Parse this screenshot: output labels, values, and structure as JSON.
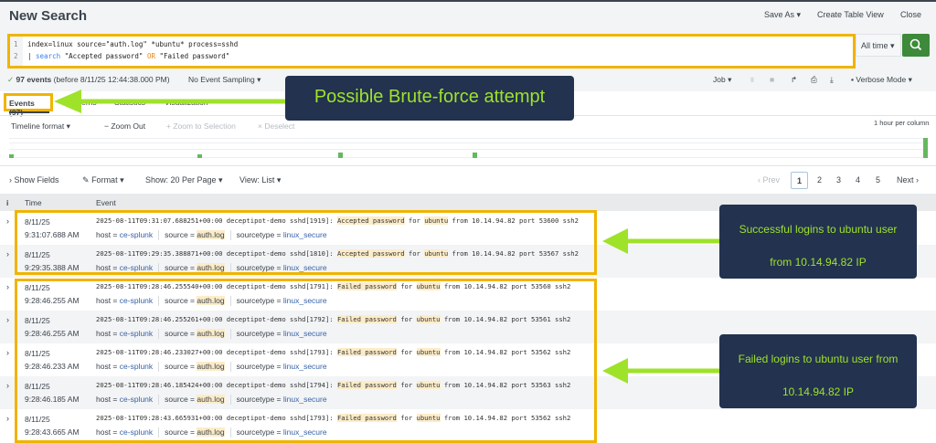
{
  "header": {
    "title": "New Search",
    "save_as": "Save As ▾",
    "create_table_view": "Create Table View",
    "close": "Close"
  },
  "search": {
    "line1": "index=linux source=\"auth.log\" *ubuntu* process=sshd",
    "line2_pipe": "| ",
    "line2_kw": "search",
    "line2_a": " \"Accepted password\" ",
    "line2_op": "OR",
    "line2_b": " \"Failed password\"",
    "time_range": "All time ▾"
  },
  "status": {
    "count": "97 events",
    "before": "(before 8/11/25 12:44:38.000 PM)",
    "sampling": "No Event Sampling ▾",
    "job": "Job ▾",
    "mode": "Verbose Mode ▾"
  },
  "tabs": [
    {
      "label": "Events (97)"
    },
    {
      "label": "Patterns"
    },
    {
      "label": "Statistics"
    },
    {
      "label": "Visualization"
    }
  ],
  "timeline": {
    "format": "Timeline format ▾",
    "zoom_out": "− Zoom Out",
    "zoom_selection": "+ Zoom to Selection",
    "deselect": "× Deselect",
    "scale": "1 hour per column",
    "bar_color": "#65b860"
  },
  "results": {
    "show_fields": "› Show Fields",
    "format": "Format ▾",
    "per_page": "Show: 20 Per Page ▾",
    "view": "View: List ▾",
    "prev": "‹ Prev",
    "pages": [
      "1",
      "2",
      "3",
      "4",
      "5"
    ],
    "current_page": "1",
    "next": "Next ›"
  },
  "table": {
    "col_i": "i",
    "col_time": "Time",
    "col_event": "Event"
  },
  "events": [
    {
      "date": "8/11/25",
      "time": "9:31:07.688 AM",
      "prefix": "2025-08-11T09:31:07.688251+00:00 deceptipot-demo sshd[1919]: ",
      "status": "Accepted password",
      "port": "53600"
    },
    {
      "date": "8/11/25",
      "time": "9:29:35.388 AM",
      "prefix": "2025-08-11T09:29:35.388871+00:00 deceptipot-demo sshd[1810]: ",
      "status": "Accepted password",
      "port": "53567"
    },
    {
      "date": "8/11/25",
      "time": "9:28:46.255 AM",
      "prefix": "2025-08-11T09:28:46.255540+00:00 deceptipot-demo sshd[1791]: ",
      "status": "Failed password",
      "port": "53560"
    },
    {
      "date": "8/11/25",
      "time": "9:28:46.255 AM",
      "prefix": "2025-08-11T09:28:46.255261+00:00 deceptipot-demo sshd[1792]: ",
      "status": "Failed password",
      "port": "53561"
    },
    {
      "date": "8/11/25",
      "time": "9:28:46.233 AM",
      "prefix": "2025-08-11T09:28:46.233027+00:00 deceptipot-demo sshd[1793]: ",
      "status": "Failed password",
      "port": "53562"
    },
    {
      "date": "8/11/25",
      "time": "9:28:46.185 AM",
      "prefix": "2025-08-11T09:28:46.185424+00:00 deceptipot-demo sshd[1794]: ",
      "status": "Failed password",
      "port": "53563"
    },
    {
      "date": "8/11/25",
      "time": "9:28:43.665 AM",
      "prefix": "2025-08-11T09:28:43.665931+00:00 deceptipot-demo sshd[1793]: ",
      "status": "Failed password",
      "port": "53562"
    }
  ],
  "event_common": {
    "for": " for ",
    "user": "ubuntu",
    "from": " from 10.14.94.82 port ",
    "proto": " ssh2",
    "host_k": "host = ",
    "host_v": "ce-splunk",
    "source_k": "source = ",
    "source_v": "auth.log",
    "st_k": "sourcetype = ",
    "st_v": "linux_secure"
  },
  "annotations": {
    "brute": "Possible Brute-force attempt",
    "success_1": "Successful logins to ubuntu user",
    "success_2": "from 10.14.94.82 IP",
    "failed_1": "Failed logins to ubuntu user from",
    "failed_2": "10.14.94.82 IP",
    "highlight_color": "#f0b400",
    "arrow_color": "#9fe22a"
  }
}
